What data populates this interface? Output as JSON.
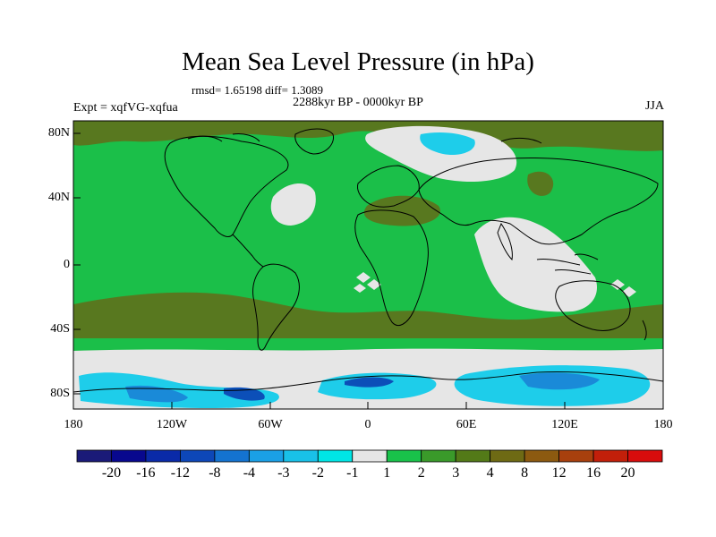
{
  "title": "Mean Sea Level Pressure (in hPa)",
  "stats": "rmsd= 1.65198 diff= 1.3089",
  "period": "2288kyr BP - 0000kyr BP",
  "experiment": "Expt = xqfVG-xqfua",
  "season": "JJA",
  "lat_labels": [
    "80N",
    "40N",
    "0",
    "40S",
    "80S"
  ],
  "lon_labels": [
    "180",
    "120W",
    "60W",
    "0",
    "60E",
    "120E",
    "180"
  ],
  "colorbar": {
    "labels": [
      "-20",
      "-16",
      "-12",
      "-8",
      "-4",
      "-3",
      "-2",
      "-1",
      "1",
      "2",
      "3",
      "4",
      "8",
      "12",
      "16",
      "20"
    ],
    "colors": [
      "#1a1a78",
      "#08088e",
      "#0a2aa8",
      "#0d47b8",
      "#1473d0",
      "#1aa0e6",
      "#19c1e8",
      "#00e6e6",
      "#e6e6e6",
      "#19c24a",
      "#3a9a2a",
      "#537a18",
      "#6e6a14",
      "#8c5a10",
      "#a8400d",
      "#c21f0a",
      "#d80c0c"
    ]
  },
  "palette": {
    "green": "#1bbf49",
    "olive": "#58781f",
    "darkgreen": "#3a8f2d",
    "light": "#e6e6e6",
    "cyan": "#1ecdea",
    "blue": "#1a8ad8",
    "darkblue": "#0c4fb8"
  }
}
